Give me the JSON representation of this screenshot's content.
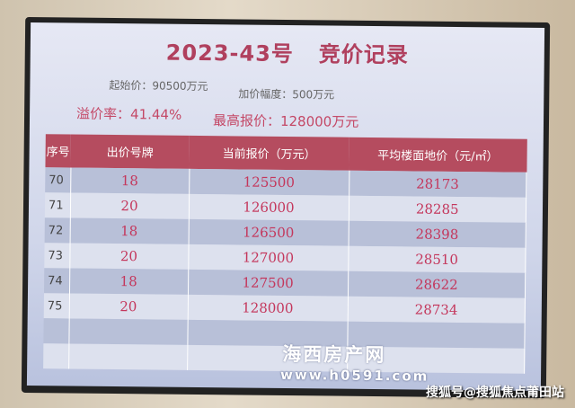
{
  "title": {
    "code": "2023-43号",
    "text": "竞价记录"
  },
  "meta": {
    "start_price": "起始价：90500万元",
    "increment": "加价幅度：500万元",
    "premium_rate": "溢价率：41.44%",
    "highest_bid": "最高报价：128000万元"
  },
  "table": {
    "headers": [
      "序号",
      "出价号牌",
      "当前报价（万元）",
      "平均楼面地价（元/㎡）"
    ],
    "rows": [
      [
        "70",
        "18",
        "125500",
        "28173"
      ],
      [
        "71",
        "20",
        "126000",
        "28285"
      ],
      [
        "72",
        "18",
        "126500",
        "28398"
      ],
      [
        "73",
        "20",
        "127000",
        "28510"
      ],
      [
        "74",
        "18",
        "127500",
        "28622"
      ],
      [
        "75",
        "20",
        "128000",
        "28734"
      ]
    ]
  },
  "watermark": {
    "name": "海西房产网",
    "url": "www.h0591.com"
  },
  "credit": "搜狐号@搜狐焦点莆田站",
  "colors": {
    "accent": "#b54c5f",
    "text_red": "#c4375c"
  }
}
